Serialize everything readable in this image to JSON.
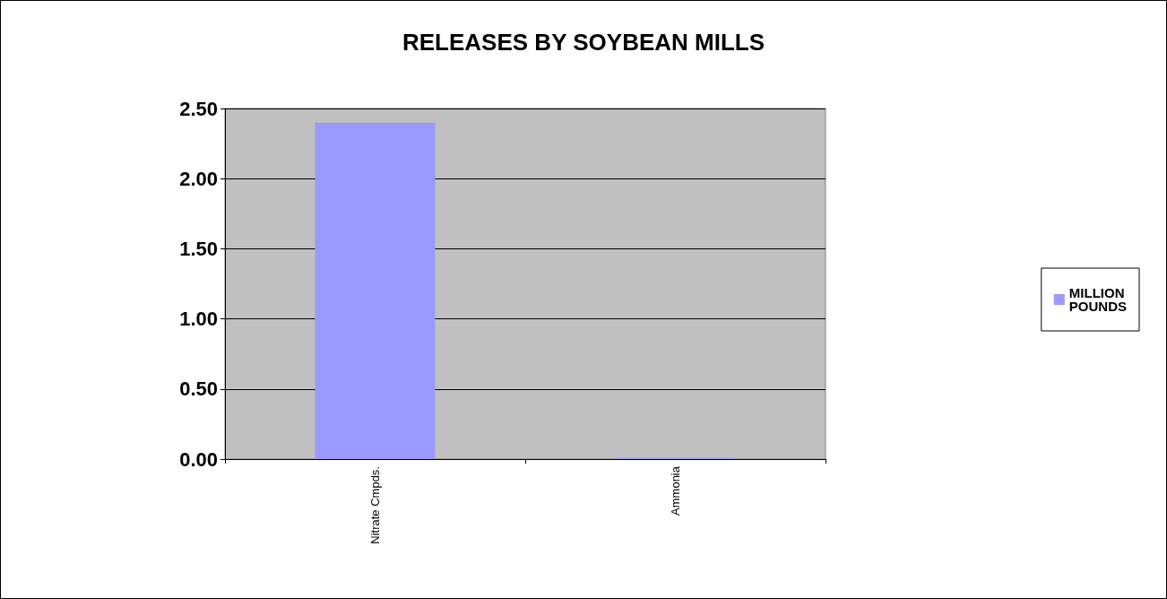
{
  "chart_data": {
    "type": "bar",
    "title": "RELEASES BY SOYBEAN MILLS",
    "categories": [
      "Nitrate Cmpds.",
      "Ammonia"
    ],
    "series": [
      {
        "name": "MILLION POUNDS",
        "color": "#9999ff",
        "values": [
          2.4,
          0.01
        ]
      }
    ],
    "ylim": [
      0,
      2.5
    ],
    "yticks": [
      {
        "value": 0,
        "label": "0.00"
      },
      {
        "value": 0.5,
        "label": "0.50"
      },
      {
        "value": 1,
        "label": "1.00"
      },
      {
        "value": 1.5,
        "label": "1.50"
      },
      {
        "value": 2,
        "label": "2.00"
      },
      {
        "value": 2.5,
        "label": "2.50"
      }
    ],
    "grid": "y",
    "legend": "right"
  }
}
